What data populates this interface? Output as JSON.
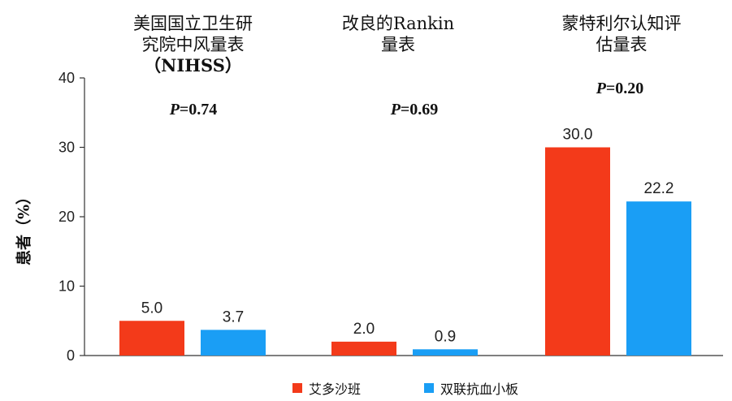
{
  "colors": {
    "series_1": "#F33A1A",
    "series_2": "#1A9EF5",
    "axis": "#333333"
  },
  "chart_data": {
    "type": "bar",
    "categories": [
      "美国国立卫生研究院中风量表（NIHSS）",
      "改良的Rankin量表",
      "蒙特利尔认知评估量表"
    ],
    "category_title_lines": [
      [
        "美国国立卫生研",
        "究院中风量表",
        "（NIHSS）"
      ],
      [
        "改良的Rankin",
        "量表"
      ],
      [
        "蒙特利尔认知评",
        "估量表"
      ]
    ],
    "series": [
      {
        "name": "艾多沙班",
        "values": [
          5.0,
          2.0,
          30.0
        ],
        "labels": [
          "5.0",
          "2.0",
          "30.0"
        ]
      },
      {
        "name": "双联抗血小板",
        "values": [
          3.7,
          0.9,
          22.2
        ],
        "labels": [
          "3.7",
          "0.9",
          "22.2"
        ]
      }
    ],
    "p_values": [
      {
        "prefix": "P",
        "rest": "=0.74"
      },
      {
        "prefix": "P",
        "rest": "=0.69"
      },
      {
        "prefix": "P",
        "rest": "=0.20"
      }
    ],
    "ylabel": "患者（%）",
    "ylim": [
      0,
      40
    ],
    "yticks": [
      0,
      10,
      20,
      30,
      40
    ],
    "grid": false,
    "legend_position": "bottom-center"
  }
}
